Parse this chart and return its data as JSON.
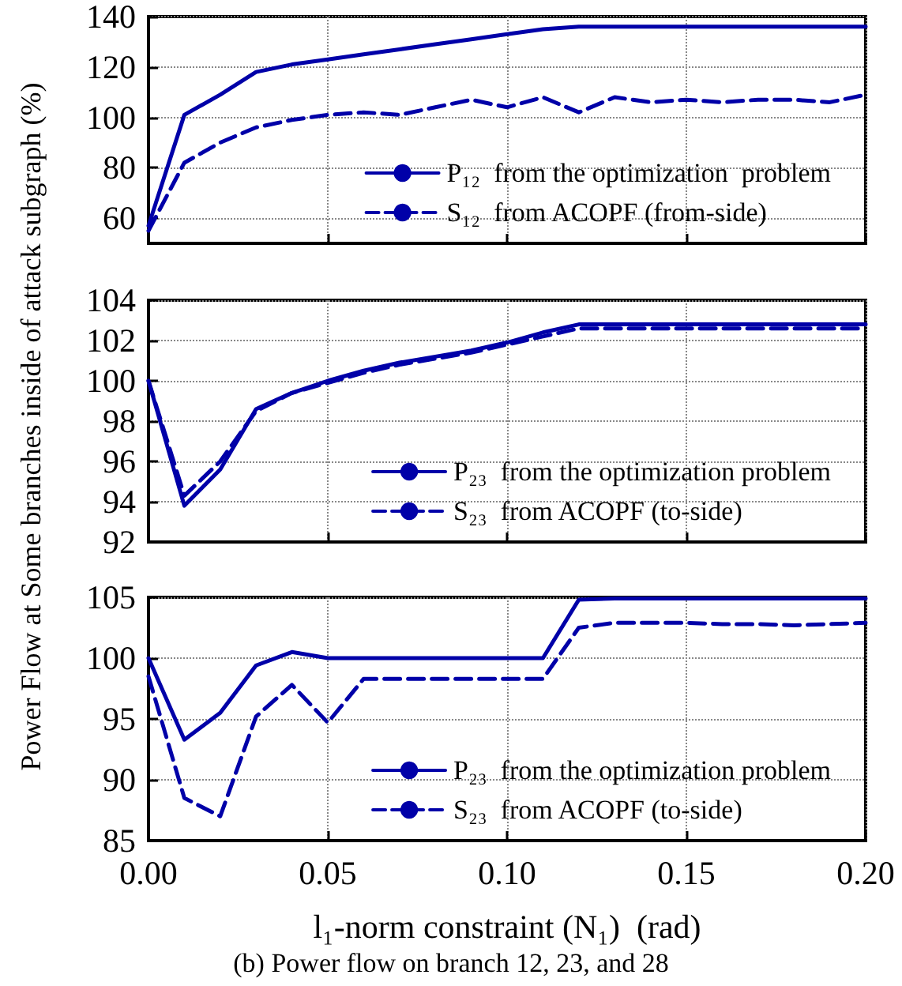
{
  "chart_data": [
    {
      "type": "line",
      "x": [
        0,
        0.01,
        0.02,
        0.03,
        0.04,
        0.05,
        0.06,
        0.07,
        0.08,
        0.09,
        0.1,
        0.11,
        0.12,
        0.13,
        0.14,
        0.15,
        0.16,
        0.17,
        0.18,
        0.19,
        0.2
      ],
      "xlim": [
        0,
        0.2
      ],
      "xticks": [
        0,
        0.05,
        0.1,
        0.15,
        0.2
      ],
      "ylim": [
        50,
        140
      ],
      "yticks": [
        60,
        80,
        100,
        120,
        140
      ],
      "tick_labels": "y",
      "grid": true,
      "legend": "bottom right",
      "marker": "none",
      "series": [
        {
          "name": "P₁₂  from the optimization  problem",
          "color": "#0000a8",
          "line_style": "solid",
          "values": [
            57,
            101,
            109,
            118,
            121,
            123,
            125,
            127,
            129,
            131,
            133,
            135,
            136,
            136,
            136,
            136,
            136,
            136,
            136,
            136,
            136
          ]
        },
        {
          "name": "S₁₂  from ACOPF (from-side)",
          "color": "#0000a8",
          "line_style": "dashed",
          "values": [
            55,
            82,
            90,
            96,
            99,
            101,
            102,
            101,
            104,
            107,
            104,
            108,
            102,
            108,
            106,
            107,
            106,
            107,
            107,
            106,
            109
          ]
        }
      ]
    },
    {
      "type": "line",
      "x": [
        0,
        0.01,
        0.02,
        0.03,
        0.04,
        0.05,
        0.06,
        0.07,
        0.08,
        0.09,
        0.1,
        0.11,
        0.12,
        0.13,
        0.14,
        0.15,
        0.16,
        0.17,
        0.18,
        0.19,
        0.2
      ],
      "xlim": [
        0,
        0.2
      ],
      "xticks": [
        0,
        0.05,
        0.1,
        0.15,
        0.2
      ],
      "ylim": [
        92,
        104
      ],
      "yticks": [
        92,
        94,
        96,
        98,
        100,
        102,
        104
      ],
      "tick_labels": "y",
      "grid": true,
      "legend": "bottom right",
      "marker": "none",
      "ylabel": "Power Flow at Some branches  inside of attack subgraph (%)",
      "series": [
        {
          "name": "P₂₃  from the optimization problem",
          "color": "#0000a8",
          "line_style": "solid",
          "values": [
            100,
            93.8,
            95.6,
            98.6,
            99.4,
            100,
            100.5,
            100.9,
            101.2,
            101.5,
            101.9,
            102.4,
            102.8,
            102.8,
            102.8,
            102.8,
            102.8,
            102.8,
            102.8,
            102.8,
            102.8
          ]
        },
        {
          "name": "S₂₃  from ACOPF (to-side)",
          "color": "#0000a8",
          "line_style": "dashed",
          "values": [
            100,
            94.3,
            96,
            98.5,
            99.4,
            99.9,
            100.4,
            100.8,
            101.1,
            101.4,
            101.8,
            102.2,
            102.6,
            102.6,
            102.6,
            102.6,
            102.6,
            102.6,
            102.6,
            102.6,
            102.6
          ]
        }
      ]
    },
    {
      "type": "line",
      "x": [
        0,
        0.01,
        0.02,
        0.03,
        0.04,
        0.05,
        0.06,
        0.07,
        0.08,
        0.09,
        0.1,
        0.11,
        0.12,
        0.13,
        0.14,
        0.15,
        0.16,
        0.17,
        0.18,
        0.19,
        0.2
      ],
      "xlim": [
        0,
        0.2
      ],
      "xticks": [
        {
          "value": 0,
          "label": "0.00"
        },
        {
          "value": 0.05,
          "label": "0.05"
        },
        {
          "value": 0.1,
          "label": "0.10"
        },
        {
          "value": 0.15,
          "label": "0.15"
        },
        {
          "value": 0.2,
          "label": "0.20"
        }
      ],
      "ylim": [
        85,
        105
      ],
      "yticks": [
        85,
        90,
        95,
        100,
        105
      ],
      "grid": true,
      "legend": "bottom right",
      "marker": "none",
      "xlabel": "l₁-norm constraint (N₁)  (rad)",
      "annotations": [
        "(b) Power flow on branch 12, 23, and 28"
      ],
      "series": [
        {
          "name": "P₂₃  from the optimization problem",
          "color": "#0000a8",
          "line_style": "solid",
          "values": [
            100,
            93.3,
            95.5,
            99.4,
            100.5,
            100,
            100,
            100,
            100,
            100,
            100,
            100,
            104.8,
            104.9,
            104.9,
            104.9,
            104.9,
            104.9,
            104.9,
            104.9,
            104.9
          ]
        },
        {
          "name": "S₂₃  from ACOPF (to-side)",
          "color": "#0000a8",
          "line_style": "dashed",
          "values": [
            98.5,
            88.5,
            87,
            95.2,
            97.8,
            94.7,
            98.3,
            98.3,
            98.3,
            98.3,
            98.3,
            98.3,
            102.5,
            102.9,
            102.9,
            102.9,
            102.8,
            102.8,
            102.7,
            102.8,
            102.9
          ]
        }
      ]
    }
  ]
}
